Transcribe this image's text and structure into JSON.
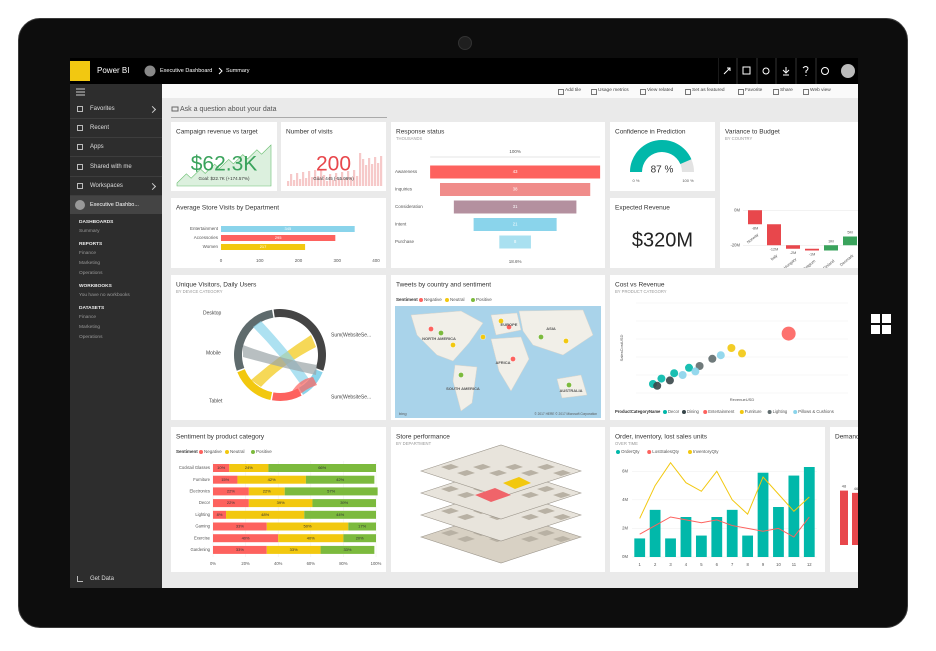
{
  "app": {
    "name": "Power BI",
    "breadcrumb": [
      "Executive Dashboard",
      "Summary"
    ]
  },
  "nav": {
    "items": [
      "Favorites",
      "Recent",
      "Apps",
      "Shared with me",
      "Workspaces"
    ],
    "workspace": "Executive Dashbo...",
    "sections": [
      {
        "title": "DASHBOARDS",
        "items": [
          "Summary"
        ]
      },
      {
        "title": "REPORTS",
        "items": [
          "Finance",
          "Marketing",
          "Operations"
        ]
      },
      {
        "title": "WORKBOOKS",
        "items": [
          "You have no workbooks"
        ]
      },
      {
        "title": "DATASETS",
        "items": [
          "Finance",
          "Marketing",
          "Operations"
        ]
      }
    ],
    "footer": "Get Data"
  },
  "toolbar": [
    "Add tile",
    "Usage metrics",
    "View related",
    "Set as featured",
    "Favorite",
    "Share",
    "Web view"
  ],
  "qa_placeholder": "Ask a question about your data",
  "tiles": [
    {
      "title": "Campaign revenue vs target",
      "kpi": "$62.3K",
      "goal": "Goal: $22.7K (+174.57%)",
      "color": "#3aa35c"
    },
    {
      "title": "Number of visits",
      "kpi": "200",
      "goal": "Goal: 445 (-55.06%)",
      "color": "#e8474c"
    },
    {
      "title": "Average Store Visits by Department",
      "chart": {
        "type": "hbar",
        "categories": [
          "Entertainment",
          "Accessories",
          "Women"
        ],
        "values": [
          345,
          295,
          217
        ],
        "colors": [
          "#8ad4eb",
          "#fd625e",
          "#f2c80f"
        ],
        "xlim": [
          0,
          400
        ],
        "xticks": [
          0,
          100,
          200,
          300,
          400
        ]
      }
    },
    {
      "title": "Response status",
      "subtitle": "THOUSANDS",
      "chart": {
        "type": "funnel",
        "categories": [
          "Awareness",
          "Inquiries",
          "Consideration",
          "Intent",
          "Purchase"
        ],
        "values": [
          43,
          38,
          31,
          21,
          8
        ],
        "colors": [
          "#fd625e",
          "#f08c8a",
          "#b4909f",
          "#8ad4eb",
          "#a9e0f0"
        ],
        "top_label": "100%",
        "bottom_label": "18.6%"
      }
    },
    {
      "title": "Confidence in Prediction",
      "chart": {
        "type": "gauge",
        "value": 87,
        "value_label": "87 %",
        "min": {
          "value": 0,
          "label": "0 %"
        },
        "max": {
          "value": 100,
          "label": "100 %"
        },
        "color": "#01b8aa"
      }
    },
    {
      "title": "Expected Revenue",
      "kpi": "$320M",
      "color": "#222222"
    },
    {
      "title": "Variance to Budget",
      "subtitle": "BY COUNTRY",
      "chart": {
        "type": "waterfall",
        "categories": [
          "Norway",
          "Italy",
          "Hungary",
          "Belgium",
          "Finland",
          "Denmark"
        ],
        "values": [
          -8,
          -12,
          -2,
          -1,
          3,
          5
        ],
        "value_labels": [
          "-8M",
          "-12M",
          "-2M",
          "-1M",
          "3M",
          "5M"
        ],
        "up_color": "#3aa35c",
        "down_color": "#e8474c",
        "ylim": [
          -25,
          15
        ],
        "yticks": [
          {
            "value": 0,
            "label": "0M"
          },
          {
            "value": -20,
            "label": "-20M"
          }
        ]
      }
    },
    {
      "title": "Unique Visitors, Daily Users",
      "subtitle": "BY DEVICE CATEGORY",
      "labels": [
        "Desktop",
        "Mobile",
        "Tablet",
        "Sum(WebsiteSe...",
        "Sum(WebsiteSe..."
      ]
    },
    {
      "title": "Tweets by country and sentiment",
      "legend_title": "Sentiment",
      "legend": [
        {
          "name": "Negative",
          "color": "#fd625e"
        },
        {
          "name": "Neutral",
          "color": "#f2c80f"
        },
        {
          "name": "Positive",
          "color": "#7cba3d"
        }
      ],
      "regions": [
        "NORTH AMERICA",
        "EUROPE",
        "ASIA",
        "AFRICA",
        "SOUTH AMERICA",
        "AUSTRALIA"
      ],
      "credit": "© 2017 HERE  © 2017 Microsoft Corporation",
      "logo": "bing"
    },
    {
      "title": "Cost vs Revenue",
      "subtitle": "BY PRODUCT CATEGORY",
      "chart": {
        "type": "scatter",
        "x_label": "RevenueUSD",
        "y_label": "SalesCostUSD",
        "legend_title": "ProductCategoryName",
        "xlim": [
          0,
          100
        ],
        "ylim": [
          0,
          100
        ],
        "series": [
          {
            "name": "Decor",
            "color": "#01b8aa",
            "x": [
              8,
              12,
              18,
              25
            ],
            "values": [
              10,
              16,
              22,
              28
            ]
          },
          {
            "name": "Dining",
            "color": "#374649",
            "x": [
              10,
              16
            ],
            "values": [
              8,
              14
            ]
          },
          {
            "name": "Entertainment",
            "color": "#fd625e",
            "x": [
              72
            ],
            "values": [
              66
            ]
          },
          {
            "name": "Furniture",
            "color": "#f2c80f",
            "x": [
              45,
              50
            ],
            "values": [
              50,
              44
            ]
          },
          {
            "name": "Lighting",
            "color": "#5f6b6d",
            "x": [
              30,
              36
            ],
            "values": [
              30,
              38
            ]
          },
          {
            "name": "Pillows & Cushions",
            "color": "#8ad4eb",
            "x": [
              22,
              40,
              28
            ],
            "values": [
              20,
              42,
              24
            ]
          }
        ]
      }
    },
    {
      "title": "Sentiment by product category",
      "chart": {
        "type": "stacked_hbar",
        "legend_title": "Sentiment",
        "categories": [
          "Cocktail Glasses",
          "Furniture",
          "Electronics",
          "Decor",
          "Lighting",
          "Gaming",
          "Exercise",
          "Gardening"
        ],
        "series": [
          {
            "name": "Negative",
            "color": "#fd625e",
            "values": [
              10,
              15,
              22,
              22,
              8,
              33,
              40,
              33
            ],
            "value_labels": [
              "10%",
              "15%",
              "22%",
              "22%",
              "8%",
              "33%",
              "40%",
              "33%"
            ]
          },
          {
            "name": "Neutral",
            "color": "#f2c80f",
            "values": [
              24,
              42,
              22,
              39,
              48,
              50,
              40,
              33
            ],
            "value_labels": [
              "24%",
              "42%",
              "22%",
              "39%",
              "48%",
              "50%",
              "40%",
              "33%"
            ]
          },
          {
            "name": "Positive",
            "color": "#7cba3d",
            "values": [
              66,
              42,
              57,
              39,
              44,
              17,
              20,
              33
            ],
            "value_labels": [
              "66%",
              "42%",
              "57%",
              "39%",
              "44%",
              "17%",
              "20%",
              "33%"
            ]
          }
        ],
        "xlim": [
          0,
          100
        ],
        "xticks": [
          {
            "value": 0,
            "label": "0%"
          },
          {
            "value": 20,
            "label": "20%"
          },
          {
            "value": 40,
            "label": "40%"
          },
          {
            "value": 60,
            "label": "60%"
          },
          {
            "value": 80,
            "label": "80%"
          },
          {
            "value": 100,
            "label": "100%"
          }
        ]
      }
    },
    {
      "title": "Store performance",
      "subtitle": "BY DEPARTMENT"
    },
    {
      "title": "Order, inventory, lost sales units",
      "subtitle": "OVER TIME",
      "chart": {
        "type": "combo",
        "categories": [
          1,
          2,
          3,
          4,
          5,
          6,
          7,
          8,
          9,
          10,
          11,
          12
        ],
        "series": [
          {
            "name": "OrderQty",
            "color": "#01b8aa",
            "kind": "bar",
            "values": [
              1.3,
              3.3,
              1.3,
              2.8,
              1.5,
              2.8,
              3.3,
              1.5,
              5.9,
              3.5,
              5.7,
              6.3
            ]
          },
          {
            "name": "LostSalesQty",
            "color": "#fd625e",
            "kind": "line",
            "values": [
              1.6,
              2.2,
              2.8,
              2.6,
              2.4,
              2.6,
              2.2,
              2.0,
              1.8,
              2.0,
              1.4,
              2.8
            ]
          },
          {
            "name": "InventoryQty",
            "color": "#f2c80f",
            "kind": "line",
            "values": [
              2.7,
              5.0,
              6.6,
              5.2,
              4.6,
              6.0,
              4.0,
              3.0,
              5.6,
              4.4,
              3.2,
              4.2
            ]
          }
        ],
        "ylim": [
          0,
          7
        ],
        "yticks": [
          {
            "value": 0,
            "label": "0M"
          },
          {
            "value": 2,
            "label": "2M"
          },
          {
            "value": 4,
            "label": "4M"
          },
          {
            "value": 6,
            "label": "6M"
          }
        ]
      }
    },
    {
      "title": "Demand",
      "chart": {
        "type": "bar",
        "values": [
          48,
          46
        ],
        "color": "#e8474c",
        "ylim": [
          0,
          60
        ]
      }
    }
  ]
}
